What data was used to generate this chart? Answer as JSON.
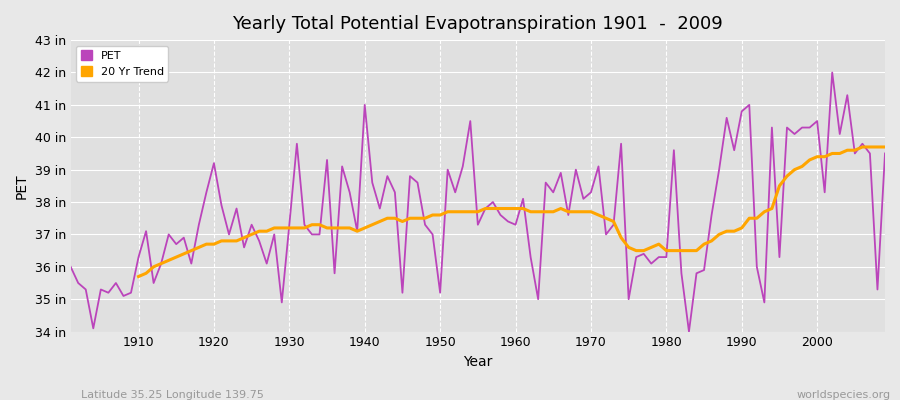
{
  "title": "Yearly Total Potential Evapotranspiration 1901  -  2009",
  "xlabel": "Year",
  "ylabel": "PET",
  "subtitle_left": "Latitude 35.25 Longitude 139.75",
  "subtitle_right": "worldspecies.org",
  "pet_color": "#BB44BB",
  "trend_color": "#FFA500",
  "bg_color": "#E8E8E8",
  "plot_bg_color": "#E0E0E0",
  "ylim": [
    34,
    43
  ],
  "yticks": [
    34,
    35,
    36,
    37,
    38,
    39,
    40,
    41,
    42,
    43
  ],
  "ytick_labels": [
    "34 in",
    "35 in",
    "36 in",
    "37 in",
    "38 in",
    "39 in",
    "40 in",
    "41 in",
    "42 in",
    "43 in"
  ],
  "years": [
    1901,
    1902,
    1903,
    1904,
    1905,
    1906,
    1907,
    1908,
    1909,
    1910,
    1911,
    1912,
    1913,
    1914,
    1915,
    1916,
    1917,
    1918,
    1919,
    1920,
    1921,
    1922,
    1923,
    1924,
    1925,
    1926,
    1927,
    1928,
    1929,
    1930,
    1931,
    1932,
    1933,
    1934,
    1935,
    1936,
    1937,
    1938,
    1939,
    1940,
    1941,
    1942,
    1943,
    1944,
    1945,
    1946,
    1947,
    1948,
    1949,
    1950,
    1951,
    1952,
    1953,
    1954,
    1955,
    1956,
    1957,
    1958,
    1959,
    1960,
    1961,
    1962,
    1963,
    1964,
    1965,
    1966,
    1967,
    1968,
    1969,
    1970,
    1971,
    1972,
    1973,
    1974,
    1975,
    1976,
    1977,
    1978,
    1979,
    1980,
    1981,
    1982,
    1983,
    1984,
    1985,
    1986,
    1987,
    1988,
    1989,
    1990,
    1991,
    1992,
    1993,
    1994,
    1995,
    1996,
    1997,
    1998,
    1999,
    2000,
    2001,
    2002,
    2003,
    2004,
    2005,
    2006,
    2007,
    2008,
    2009
  ],
  "pet_values": [
    36.0,
    35.5,
    35.3,
    34.1,
    35.3,
    35.2,
    35.5,
    35.1,
    35.2,
    36.3,
    37.1,
    35.5,
    36.1,
    37.0,
    36.7,
    36.9,
    36.1,
    37.3,
    38.3,
    39.2,
    37.9,
    37.0,
    37.8,
    36.6,
    37.3,
    36.8,
    36.1,
    37.0,
    34.9,
    37.3,
    39.8,
    37.3,
    37.0,
    37.0,
    39.3,
    35.8,
    39.1,
    38.3,
    37.1,
    41.0,
    38.6,
    37.8,
    38.8,
    38.3,
    35.2,
    38.8,
    38.6,
    37.3,
    37.0,
    35.2,
    39.0,
    38.3,
    39.1,
    40.5,
    37.3,
    37.8,
    38.0,
    37.6,
    37.4,
    37.3,
    38.1,
    36.3,
    35.0,
    38.6,
    38.3,
    38.9,
    37.6,
    39.0,
    38.1,
    38.3,
    39.1,
    37.0,
    37.3,
    39.8,
    35.0,
    36.3,
    36.4,
    36.1,
    36.3,
    36.3,
    39.6,
    35.8,
    34.0,
    35.8,
    35.9,
    37.6,
    39.0,
    40.6,
    39.6,
    40.8,
    41.0,
    36.0,
    34.9,
    40.3,
    36.3,
    40.3,
    40.1,
    40.3,
    40.3,
    40.5,
    38.3,
    42.0,
    40.1,
    41.3,
    39.5,
    39.8,
    39.5,
    35.3,
    39.5
  ],
  "trend_years": [
    1910,
    1911,
    1912,
    1913,
    1914,
    1915,
    1916,
    1917,
    1918,
    1919,
    1920,
    1921,
    1922,
    1923,
    1924,
    1925,
    1926,
    1927,
    1928,
    1929,
    1930,
    1931,
    1932,
    1933,
    1934,
    1935,
    1936,
    1937,
    1938,
    1939,
    1940,
    1941,
    1942,
    1943,
    1944,
    1945,
    1946,
    1947,
    1948,
    1949,
    1950,
    1951,
    1952,
    1953,
    1954,
    1955,
    1956,
    1957,
    1958,
    1959,
    1960,
    1961,
    1962,
    1963,
    1964,
    1965,
    1966,
    1967,
    1968,
    1969,
    1970,
    1971,
    1972,
    1973,
    1974,
    1975,
    1976,
    1977,
    1978,
    1979,
    1980,
    1981,
    1982,
    1983,
    1984,
    1985,
    1986,
    1987,
    1988,
    1989,
    1990,
    1991,
    1992,
    1993,
    1994,
    1995,
    1996,
    1997,
    1998,
    1999,
    2000,
    2001,
    2002,
    2003,
    2004,
    2005,
    2006,
    2007,
    2008,
    2009
  ],
  "trend_values": [
    35.7,
    35.8,
    36.0,
    36.1,
    36.2,
    36.3,
    36.4,
    36.5,
    36.6,
    36.7,
    36.7,
    36.8,
    36.8,
    36.8,
    36.9,
    37.0,
    37.1,
    37.1,
    37.2,
    37.2,
    37.2,
    37.2,
    37.2,
    37.3,
    37.3,
    37.2,
    37.2,
    37.2,
    37.2,
    37.1,
    37.2,
    37.3,
    37.4,
    37.5,
    37.5,
    37.4,
    37.5,
    37.5,
    37.5,
    37.6,
    37.6,
    37.7,
    37.7,
    37.7,
    37.7,
    37.7,
    37.8,
    37.8,
    37.8,
    37.8,
    37.8,
    37.8,
    37.7,
    37.7,
    37.7,
    37.7,
    37.8,
    37.7,
    37.7,
    37.7,
    37.7,
    37.6,
    37.5,
    37.4,
    36.9,
    36.6,
    36.5,
    36.5,
    36.6,
    36.7,
    36.5,
    36.5,
    36.5,
    36.5,
    36.5,
    36.7,
    36.8,
    37.0,
    37.1,
    37.1,
    37.2,
    37.5,
    37.5,
    37.7,
    37.8,
    38.5,
    38.8,
    39.0,
    39.1,
    39.3,
    39.4,
    39.4,
    39.5,
    39.5,
    39.6,
    39.6,
    39.7,
    39.7,
    39.7,
    39.7
  ]
}
